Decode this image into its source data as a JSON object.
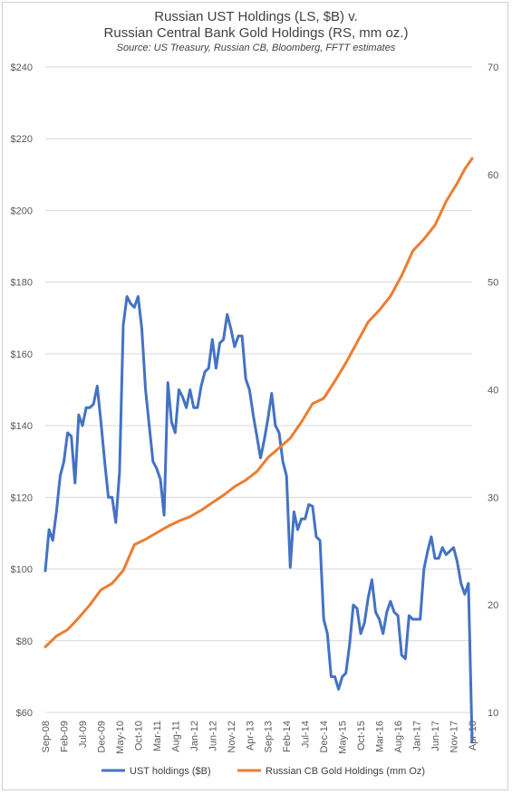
{
  "chart_data": {
    "type": "line",
    "title": "Russian UST Holdings (LS, $B) v.",
    "title_line2": "Russian Central Bank Gold Holdings (RS, mm oz.)",
    "subtitle": "Source:  US Treasury, Russian CB, Bloomberg, FFTT estimates",
    "legend_position": "bottom",
    "grid": "horizontal",
    "x_tick_labels": [
      "Sep-08",
      "Feb-09",
      "Jul-09",
      "Dec-09",
      "May-10",
      "Oct-10",
      "Mar-11",
      "Aug-11",
      "Jan-12",
      "Jun-12",
      "Nov-12",
      "Apr-13",
      "Sep-13",
      "Feb-14",
      "Jul-14",
      "Dec-14",
      "May-15",
      "Oct-15",
      "Mar-16",
      "Aug-16",
      "Jan-17",
      "Jun-17",
      "Nov-17",
      "Apr-18"
    ],
    "y_left": {
      "ticks": [
        "$60",
        "$80",
        "$100",
        "$120",
        "$140",
        "$160",
        "$180",
        "$200",
        "$220",
        "$240"
      ],
      "ylim": [
        60,
        240
      ]
    },
    "y_right": {
      "ticks": [
        "10",
        "20",
        "30",
        "40",
        "50",
        "60",
        "70"
      ],
      "ylim": [
        10,
        70
      ]
    },
    "x_range": [
      0,
      115
    ],
    "series": [
      {
        "name": "UST holdings ($B)",
        "axis": "left",
        "color": "#4472c4",
        "x": [
          0,
          1,
          2,
          3,
          4,
          5,
          6,
          7,
          8,
          9,
          10,
          11,
          12,
          13,
          14,
          15,
          16,
          17,
          18,
          19,
          20,
          21,
          22,
          23,
          24,
          25,
          26,
          27,
          28,
          29,
          30,
          31,
          32,
          33,
          34,
          35,
          36,
          37,
          38,
          39,
          40,
          41,
          42,
          43,
          44,
          45,
          46,
          47,
          48,
          49,
          50,
          51,
          52,
          53,
          54,
          55,
          56,
          57,
          58,
          59,
          60,
          61,
          62,
          63,
          64,
          65,
          66,
          67,
          68,
          69,
          70,
          71,
          72,
          73,
          74,
          75,
          76,
          77,
          78,
          79,
          80,
          81,
          82,
          83,
          84,
          85,
          86,
          87,
          88,
          89,
          90,
          91,
          92,
          93,
          94,
          95,
          96,
          97,
          98,
          99,
          100,
          101,
          102,
          103,
          104,
          105,
          106,
          107,
          108,
          109,
          110,
          111,
          112,
          113,
          114,
          115
        ],
        "values": [
          99.5,
          111,
          108,
          116,
          126,
          130,
          138,
          137,
          124,
          143,
          140,
          145,
          145,
          146,
          151,
          141,
          130,
          120,
          120,
          113,
          127,
          168,
          176,
          174,
          173,
          176,
          167,
          150,
          140,
          130,
          128,
          125,
          115,
          152,
          141,
          138,
          150,
          148,
          145,
          150,
          145,
          145,
          151,
          155,
          156,
          164,
          156,
          163,
          164,
          171,
          167,
          162,
          165,
          165,
          153,
          150,
          143,
          137,
          131,
          136,
          142,
          149,
          140,
          138,
          130,
          126,
          100.5,
          116,
          111,
          114,
          114,
          118,
          117.5,
          109,
          108,
          86,
          82,
          70,
          70,
          66.5,
          70,
          71,
          79,
          90,
          89,
          82,
          85,
          92,
          97,
          88,
          86,
          82,
          88,
          91,
          88,
          87,
          76,
          75,
          87,
          86,
          86,
          86,
          100,
          105,
          109,
          103,
          103,
          106,
          104,
          105,
          106,
          102,
          96,
          93,
          96,
          52
        ]
      },
      {
        "name": "Russian CB Gold Holdings (mm Oz)",
        "axis": "right",
        "color": "#ed7d31",
        "x": [
          0,
          3,
          6,
          9,
          12,
          15,
          18,
          21,
          24,
          27,
          30,
          33,
          36,
          39,
          42,
          45,
          48,
          51,
          54,
          57,
          60,
          63,
          66,
          69,
          72,
          75,
          78,
          81,
          84,
          87,
          90,
          93,
          96,
          99,
          102,
          105,
          108,
          111,
          113,
          115
        ],
        "values": [
          16.1,
          17.1,
          17.7,
          18.8,
          20.0,
          21.4,
          22.0,
          23.2,
          25.6,
          26.1,
          26.7,
          27.3,
          27.8,
          28.2,
          28.8,
          29.5,
          30.2,
          31.0,
          31.6,
          32.4,
          33.7,
          34.6,
          35.5,
          37.0,
          38.7,
          39.2,
          40.8,
          42.5,
          44.4,
          46.3,
          47.4,
          48.7,
          50.6,
          52.9,
          54.0,
          55.3,
          57.5,
          59.2,
          60.5,
          61.5
        ]
      }
    ]
  }
}
